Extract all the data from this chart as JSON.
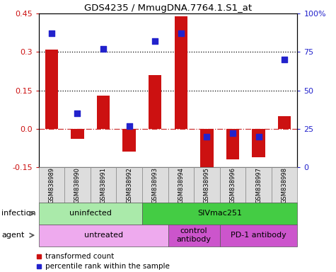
{
  "title": "GDS4235 / MmugDNA.7764.1.S1_at",
  "samples": [
    "GSM838989",
    "GSM838990",
    "GSM838991",
    "GSM838992",
    "GSM838993",
    "GSM838994",
    "GSM838995",
    "GSM838996",
    "GSM838997",
    "GSM838998"
  ],
  "transformed_count": [
    0.31,
    -0.04,
    0.13,
    -0.09,
    0.21,
    0.44,
    -0.19,
    -0.12,
    -0.11,
    0.05
  ],
  "percentile_rank": [
    87,
    35,
    77,
    27,
    82,
    87,
    20,
    22,
    20,
    70
  ],
  "ylim": [
    -0.15,
    0.45
  ],
  "yticks": [
    -0.15,
    0.0,
    0.15,
    0.3,
    0.45
  ],
  "y2ticks": [
    0,
    25,
    50,
    75,
    100
  ],
  "hlines": [
    0.15,
    0.3
  ],
  "bar_color": "#cc1111",
  "dot_color": "#2222cc",
  "inf_ranges": [
    [
      0,
      3,
      "uninfected",
      "#aaeaaa"
    ],
    [
      4,
      9,
      "SIVmac251",
      "#44cc44"
    ]
  ],
  "agent_ranges": [
    [
      0,
      4,
      "untreated",
      "#eeaaee"
    ],
    [
      5,
      6,
      "control\nantibody",
      "#cc55cc"
    ],
    [
      7,
      9,
      "PD-1 antibody",
      "#cc55cc"
    ]
  ],
  "legend_items": [
    {
      "label": "transformed count",
      "color": "#cc1111"
    },
    {
      "label": "percentile rank within the sample",
      "color": "#2222cc"
    }
  ]
}
